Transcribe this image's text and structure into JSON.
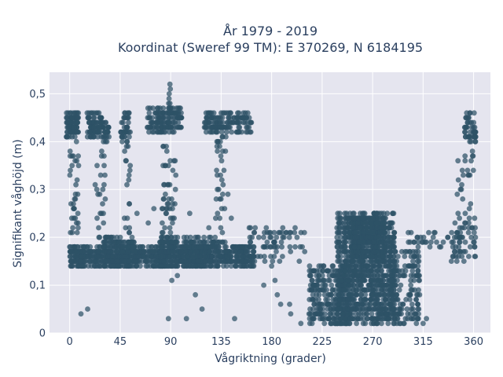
{
  "chart_data": {
    "type": "scatter",
    "title_line1": "År 1979 - 2019",
    "title_line2": "Koordinat (Sweref 99 TM): E 370269, N 6184195",
    "xlabel": "Vågriktning (grader)",
    "ylabel": "Signifikant våghöjd (m)",
    "xlim": [
      -18,
      375
    ],
    "ylim": [
      0,
      0.545
    ],
    "grid": true,
    "x_ticks": [
      {
        "value": 0,
        "label": "0"
      },
      {
        "value": 45,
        "label": "45"
      },
      {
        "value": 90,
        "label": "90"
      },
      {
        "value": 135,
        "label": "135"
      },
      {
        "value": 180,
        "label": "180"
      },
      {
        "value": 225,
        "label": "225"
      },
      {
        "value": 270,
        "label": "270"
      },
      {
        "value": 315,
        "label": "315"
      },
      {
        "value": 360,
        "label": "360"
      }
    ],
    "y_ticks": [
      {
        "value": 0,
        "label": "0"
      },
      {
        "value": 0.1,
        "label": "0,1"
      },
      {
        "value": 0.2,
        "label": "0,2"
      },
      {
        "value": 0.3,
        "label": "0,3"
      },
      {
        "value": 0.4,
        "label": "0,4"
      },
      {
        "value": 0.5,
        "label": "0,5"
      }
    ],
    "marker_color": "#2e5266",
    "background_color": "#e5e5ef",
    "clusters": [
      {
        "x_range": [
          -3,
          8
        ],
        "y_range": [
          0.41,
          0.46
        ],
        "count": 90
      },
      {
        "x_range": [
          15,
          30
        ],
        "y_range": [
          0.41,
          0.46
        ],
        "count": 90
      },
      {
        "x_range": [
          30,
          35
        ],
        "y_range": [
          0.4,
          0.44
        ],
        "count": 25
      },
      {
        "x_range": [
          45,
          53
        ],
        "y_range": [
          0.4,
          0.46
        ],
        "count": 35
      },
      {
        "x_range": [
          68,
          100
        ],
        "y_range": [
          0.42,
          0.47
        ],
        "count": 140
      },
      {
        "x_range": [
          120,
          162
        ],
        "y_range": [
          0.42,
          0.46
        ],
        "count": 150
      },
      {
        "x_range": [
          352,
          362
        ],
        "y_range": [
          0.4,
          0.46
        ],
        "count": 50
      },
      {
        "x_range": [
          0,
          165
        ],
        "y_range": [
          0.14,
          0.18
        ],
        "count": 900
      },
      {
        "x_range": [
          30,
          60
        ],
        "y_range": [
          0.14,
          0.2
        ],
        "count": 150
      },
      {
        "x_range": [
          80,
          130
        ],
        "y_range": [
          0.14,
          0.2
        ],
        "count": 220
      },
      {
        "x_range": [
          160,
          210
        ],
        "y_range": [
          0.15,
          0.22
        ],
        "count": 70
      },
      {
        "x_range": [
          213,
          250
        ],
        "y_range": [
          0.02,
          0.14
        ],
        "count": 260
      },
      {
        "x_range": [
          238,
          290
        ],
        "y_range": [
          0.02,
          0.25
        ],
        "count": 1000
      },
      {
        "x_range": [
          250,
          282
        ],
        "y_range": [
          0.15,
          0.24
        ],
        "count": 300
      },
      {
        "x_range": [
          285,
          312
        ],
        "y_range": [
          0.02,
          0.18
        ],
        "count": 160
      },
      {
        "x_range": [
          340,
          362
        ],
        "y_range": [
          0.15,
          0.24
        ],
        "count": 50
      }
    ],
    "trails": [
      {
        "x_range": [
          0,
          8
        ],
        "y_range": [
          0.16,
          0.4
        ],
        "count": 35
      },
      {
        "x_range": [
          22,
          32
        ],
        "y_range": [
          0.16,
          0.4
        ],
        "count": 25
      },
      {
        "x_range": [
          48,
          55
        ],
        "y_range": [
          0.18,
          0.42
        ],
        "count": 25
      },
      {
        "x_range": [
          82,
          95
        ],
        "y_range": [
          0.17,
          0.46
        ],
        "count": 60
      },
      {
        "x_range": [
          88,
          90
        ],
        "y_range": [
          0.45,
          0.52
        ],
        "count": 10
      },
      {
        "x_range": [
          130,
          140
        ],
        "y_range": [
          0.18,
          0.42
        ],
        "count": 40
      },
      {
        "x_range": [
          345,
          360
        ],
        "y_range": [
          0.19,
          0.4
        ],
        "count": 35
      },
      {
        "x_range": [
          300,
          345
        ],
        "y_range": [
          0.18,
          0.21
        ],
        "count": 25
      }
    ],
    "outliers": [
      {
        "x": 10,
        "y": 0.04
      },
      {
        "x": 16,
        "y": 0.05
      },
      {
        "x": 88,
        "y": 0.03
      },
      {
        "x": 104,
        "y": 0.03
      },
      {
        "x": 118,
        "y": 0.05
      },
      {
        "x": 112,
        "y": 0.08
      },
      {
        "x": 147,
        "y": 0.03
      },
      {
        "x": 91,
        "y": 0.11
      },
      {
        "x": 173,
        "y": 0.1
      },
      {
        "x": 183,
        "y": 0.11
      },
      {
        "x": 185,
        "y": 0.08
      },
      {
        "x": 188,
        "y": 0.06
      },
      {
        "x": 197,
        "y": 0.04
      },
      {
        "x": 196,
        "y": 0.06
      },
      {
        "x": 206,
        "y": 0.02
      },
      {
        "x": 96,
        "y": 0.12
      },
      {
        "x": 141,
        "y": 0.29
      },
      {
        "x": 144,
        "y": 0.24
      },
      {
        "x": 44,
        "y": 0.19
      },
      {
        "x": 30,
        "y": 0.25
      },
      {
        "x": 75,
        "y": 0.26
      },
      {
        "x": 70,
        "y": 0.23
      },
      {
        "x": 107,
        "y": 0.25
      },
      {
        "x": 124,
        "y": 0.22
      },
      {
        "x": 160,
        "y": 0.22
      },
      {
        "x": 176,
        "y": 0.19
      },
      {
        "x": 180,
        "y": 0.14
      },
      {
        "x": 315,
        "y": 0.02
      },
      {
        "x": 318,
        "y": 0.03
      },
      {
        "x": 333,
        "y": 0.19
      },
      {
        "x": 337,
        "y": 0.2
      },
      {
        "x": 327,
        "y": 0.19
      },
      {
        "x": 320,
        "y": 0.21
      },
      {
        "x": 5,
        "y": 0.24
      },
      {
        "x": 25,
        "y": 0.16
      },
      {
        "x": 60,
        "y": 0.25
      }
    ]
  }
}
